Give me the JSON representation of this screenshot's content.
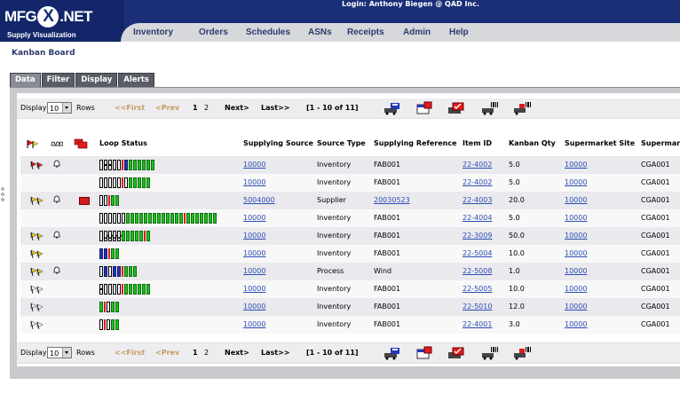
{
  "app": {
    "logo_main_left": "MFG",
    "logo_x": "X",
    "logo_main_right": ".NET",
    "logo_subtitle": "Supply Visualization",
    "login_text": "Login: Anthony Biegen @ QAD Inc."
  },
  "nav": [
    "Inventory",
    "Orders",
    "Schedules",
    "ASNs",
    "Receipts",
    "Admin",
    "Help"
  ],
  "page_title": "Kanban Board",
  "tabs": [
    "Data",
    "Filter",
    "Display",
    "Alerts"
  ],
  "pager": {
    "display_label": "Display",
    "display_value": "10",
    "rows_label": "Rows",
    "first": "<<First",
    "prev": "<Prev",
    "page1": "1",
    "page2": "2",
    "next": "Next>",
    "last": "Last>>",
    "range": "[1 - 10 of 11]"
  },
  "columns": {
    "loop_status": "Loop Status",
    "supplying_source": "Supplying Source",
    "source_type": "Source Type",
    "supplying_reference": "Supplying Reference",
    "item_id": "Item ID",
    "kanban_qty": "Kanban Qty",
    "supermarket_site": "Supermarket Site",
    "supermarket_cut": "Supermarke"
  },
  "column_icons": [
    "flag-icon",
    "bell-icon",
    "envelope-icon"
  ],
  "toolbar_icons": [
    "cart-icon",
    "calendar-icon",
    "folder-icon",
    "barcode-cart-icon",
    "barcode-sign-icon"
  ],
  "colors": {
    "header_bg": "#1a2f78",
    "nav_bg": "#d7d8dc",
    "link": "#2a4db3",
    "full": "#1dc21d",
    "in_transit": "#2437b8",
    "alert": "#e21b1b"
  },
  "rows": [
    {
      "flag": "red",
      "bell": true,
      "env": false,
      "status": "e,d,d,e,e,r,b,g,g,g,g,g,g",
      "source": "10000",
      "type": "Inventory",
      "ref": "FAB001",
      "item": "22-4002",
      "qty": "5.0",
      "site": "10000",
      "sm": "CGA001"
    },
    {
      "flag": "none",
      "bell": false,
      "env": false,
      "status": "e,e,e,e,e,r,e,g,g,g,g,g",
      "source": "10000",
      "type": "Inventory",
      "ref": "FAB001",
      "item": "22-4002",
      "qty": "5.0",
      "site": "10000",
      "sm": "CGA001"
    },
    {
      "flag": "yellow",
      "bell": true,
      "env": true,
      "status": "e,e,r,g,g",
      "source": "5004000",
      "type": "Supplier",
      "ref": "20030523",
      "item": "22-4003",
      "qty": "20.0",
      "site": "10000",
      "sm": "CGA001"
    },
    {
      "flag": "none",
      "bell": false,
      "env": false,
      "status": "e,e,e,e,e,e,g,g,g,g,g,g,g,g,g,g,g,g,g,r,g,g,g,g,g,g,g",
      "source": "10000",
      "type": "Inventory",
      "ref": "FAB001",
      "item": "22-4004",
      "qty": "5.0",
      "site": "10000",
      "sm": "CGA001"
    },
    {
      "flag": "yellow",
      "bell": true,
      "env": false,
      "status": "e,c,c,c,c,g,g,g,g,g,r,g",
      "source": "10000",
      "type": "Inventory",
      "ref": "FAB001",
      "item": "22-3009",
      "qty": "50.0",
      "site": "10000",
      "sm": "CGA001"
    },
    {
      "flag": "yellow",
      "bell": false,
      "env": false,
      "status": "b,b,r,g,g",
      "source": "10000",
      "type": "Inventory",
      "ref": "FAB001",
      "item": "22-5004",
      "qty": "10.0",
      "site": "10000",
      "sm": "CGA001"
    },
    {
      "flag": "yellow",
      "bell": true,
      "env": false,
      "status": "e,b,e,b,b,r,g,g,g",
      "source": "10000",
      "type": "Process",
      "ref": "Wind",
      "item": "22-5008",
      "qty": "1.0",
      "site": "10000",
      "sm": "CGA001"
    },
    {
      "flag": "white",
      "bell": false,
      "env": false,
      "status": "d,e,e,e,e,r,g,g,g,g,g,g",
      "source": "10000",
      "type": "Inventory",
      "ref": "FAB001",
      "item": "22-5005",
      "qty": "10.0",
      "site": "10000",
      "sm": "CGA001"
    },
    {
      "flag": "white",
      "bell": false,
      "env": false,
      "status": "g,r,e,g,g",
      "source": "10000",
      "type": "Inventory",
      "ref": "FAB001",
      "item": "22-5010",
      "qty": "12.0",
      "site": "10000",
      "sm": "CGA001"
    },
    {
      "flag": "white",
      "bell": false,
      "env": false,
      "status": "e,r,e,g,g",
      "source": "10000",
      "type": "Inventory",
      "ref": "FAB001",
      "item": "22-4001",
      "qty": "3.0",
      "site": "10000",
      "sm": "CGA001"
    }
  ]
}
